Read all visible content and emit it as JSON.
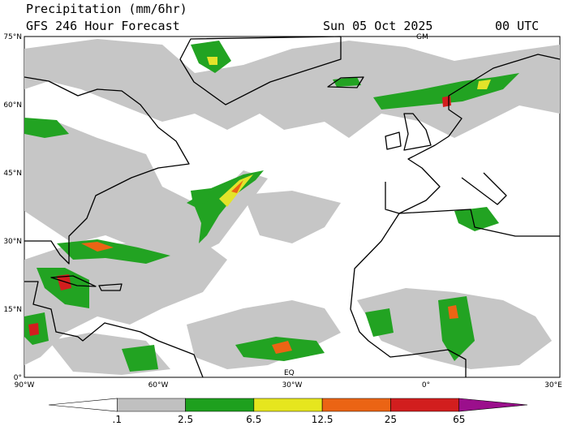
{
  "header": {
    "title": "Precipitation (mm/6hr)",
    "subtitle": "GFS 246 Hour Forecast",
    "date": "Sun 05 Oct 2025",
    "time": "00 UTC"
  },
  "axes": {
    "lat_labels": [
      "75°N",
      "60°N",
      "45°N",
      "30°N",
      "15°N",
      "0°"
    ],
    "lon_labels": [
      "90°W",
      "60°W",
      "30°W",
      "0°",
      "30°E"
    ]
  },
  "map": {
    "markers": [
      "GM",
      "EQ"
    ]
  },
  "colorbar": {
    "labels": [
      ".1",
      "2.5",
      "6.5",
      "12.5",
      "25",
      "65"
    ],
    "colors": [
      "#ffffff",
      "#c0c0c0",
      "#1ea01e",
      "#e6e61e",
      "#eb6414",
      "#d21e1e",
      "#9b0f8c"
    ]
  }
}
